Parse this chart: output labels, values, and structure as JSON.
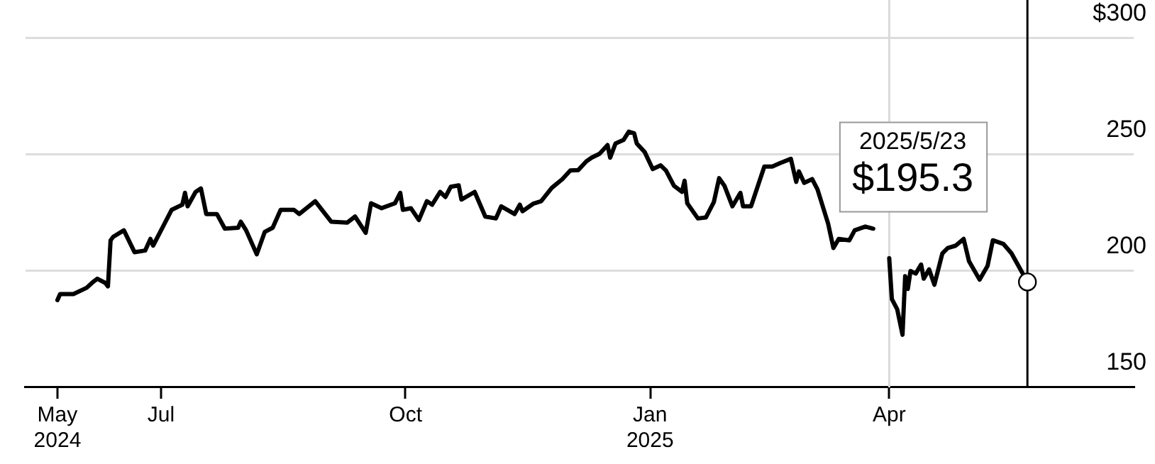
{
  "chart_data": {
    "type": "line",
    "color": "#000000",
    "marker": "none",
    "line_style": "solid",
    "legend": false,
    "grid": "y",
    "x": [
      "2024-05-23",
      "2024-05-24",
      "2024-05-29",
      "2024-06-03",
      "2024-06-05",
      "2024-06-07",
      "2024-06-10",
      "2024-06-11",
      "2024-06-12",
      "2024-06-13",
      "2024-06-17",
      "2024-06-21",
      "2024-06-25",
      "2024-06-27",
      "2024-06-28",
      "2024-07-02",
      "2024-07-05",
      "2024-07-09",
      "2024-07-10",
      "2024-07-11",
      "2024-07-14",
      "2024-07-16",
      "2024-07-18",
      "2024-07-22",
      "2024-07-25",
      "2024-07-30",
      "2024-07-31",
      "2024-08-02",
      "2024-08-06",
      "2024-08-09",
      "2024-08-12",
      "2024-08-15",
      "2024-08-20",
      "2024-08-22",
      "2024-08-28",
      "2024-09-03",
      "2024-09-09",
      "2024-09-12",
      "2024-09-16",
      "2024-09-18",
      "2024-09-22",
      "2024-09-27",
      "2024-09-29",
      "2024-09-30",
      "2024-10-03",
      "2024-10-06",
      "2024-10-09",
      "2024-10-11",
      "2024-10-14",
      "2024-10-16",
      "2024-10-18",
      "2024-10-21",
      "2024-10-22",
      "2024-10-27",
      "2024-10-31",
      "2024-11-04",
      "2024-11-06",
      "2024-11-11",
      "2024-11-13",
      "2024-11-14",
      "2024-11-18",
      "2024-11-21",
      "2024-11-25",
      "2024-11-29",
      "2024-12-02",
      "2024-12-05",
      "2024-12-08",
      "2024-12-10",
      "2024-12-13",
      "2024-12-16",
      "2024-12-17",
      "2024-12-19",
      "2024-12-22",
      "2024-12-24",
      "2024-12-26",
      "2024-12-27",
      "2024-12-30",
      "2025-01-02",
      "2025-01-05",
      "2025-01-07",
      "2025-01-10",
      "2025-01-13",
      "2025-01-14",
      "2025-01-15",
      "2025-01-19",
      "2025-01-22",
      "2025-01-25",
      "2025-01-27",
      "2025-01-29",
      "2025-02-01",
      "2025-02-04",
      "2025-02-05",
      "2025-02-08",
      "2025-02-13",
      "2025-02-16",
      "2025-02-19",
      "2025-02-23",
      "2025-02-25",
      "2025-02-26",
      "2025-02-28",
      "2025-03-03",
      "2025-03-05",
      "2025-03-09",
      "2025-03-11",
      "2025-03-13",
      "2025-03-17",
      "2025-03-19",
      "2025-03-23",
      "2025-03-26",
      "2025-03-28",
      "2025-03-31",
      "2025-04-01",
      "2025-04-02",
      "2025-04-04",
      "2025-04-06",
      "2025-04-07",
      "2025-04-08",
      "2025-04-09",
      "2025-04-11",
      "2025-04-13",
      "2025-04-14",
      "2025-04-16",
      "2025-04-18",
      "2025-04-21",
      "2025-04-23",
      "2025-04-26",
      "2025-04-29",
      "2025-05-01",
      "2025-05-05",
      "2025-05-08",
      "2025-05-10",
      "2025-05-14",
      "2025-05-17",
      "2025-05-23"
    ],
    "values": [
      187.5,
      190.1,
      190.1,
      192.8,
      194.9,
      196.7,
      194.9,
      193.4,
      213.2,
      214.7,
      217.5,
      208.1,
      208.8,
      213.8,
      210.9,
      219.7,
      226.3,
      228.5,
      233.6,
      227.8,
      234,
      235.5,
      224.5,
      224.5,
      218.2,
      218.6,
      221.2,
      217.5,
      207.2,
      216.8,
      218.6,
      226.3,
      226.3,
      224.5,
      230,
      221.2,
      220.8,
      223.4,
      216.4,
      229.1,
      227,
      229.1,
      233.6,
      226.3,
      227,
      221.9,
      230,
      228.5,
      234,
      231.8,
      236.2,
      236.8,
      230.7,
      234,
      223.4,
      222.6,
      227.8,
      224.5,
      228.5,
      225.7,
      228.9,
      230,
      235.7,
      239.5,
      243.2,
      243.4,
      247.1,
      248.7,
      250.4,
      254.1,
      248.7,
      254.8,
      256.3,
      259.9,
      259.2,
      254.8,
      251.1,
      243.8,
      245.4,
      243.2,
      236.6,
      234,
      238.8,
      229.1,
      222.6,
      223,
      229.6,
      239.9,
      236.6,
      227.8,
      233.6,
      227.8,
      227.8,
      244.9,
      244.9,
      246.4,
      248.2,
      238.3,
      242.8,
      237.9,
      239.5,
      235.1,
      220.4,
      209.9,
      213.8,
      213.2,
      217.5,
      219.1,
      218.2,
      null,
      null,
      205.5,
      187.9,
      183.6,
      172.6,
      197.8,
      192.3,
      200,
      198.9,
      202.8,
      196.7,
      200.7,
      194.1,
      207.6,
      209.9,
      210.9,
      213.8,
      204.3,
      196.3,
      202.2,
      213.2,
      211.6,
      207.6,
      195.3
    ],
    "xlim": [
      "2024-05-11",
      "2025-07-02"
    ],
    "xticks": [
      {
        "value": "2024-05-23",
        "label": "May 2024"
      },
      {
        "value": "2024-07-01",
        "label": "Jul"
      },
      {
        "value": "2024-10-01",
        "label": "Oct"
      },
      {
        "value": "2025-01-01",
        "label": "Jan 2025"
      },
      {
        "value": "2025-04-01",
        "label": "Apr"
      }
    ],
    "ylim": [
      150,
      300
    ],
    "yticks": [
      150,
      200,
      250,
      {
        "value": 300,
        "label": "$300"
      }
    ],
    "ref_lines": [
      {
        "axis": "x",
        "value": "2025-04-01",
        "color": "#d9d9d9"
      },
      {
        "axis": "x",
        "value": "2025-05-23",
        "color": "#000000"
      }
    ],
    "annotations": [
      "2025/5/23",
      "$195.3"
    ]
  }
}
